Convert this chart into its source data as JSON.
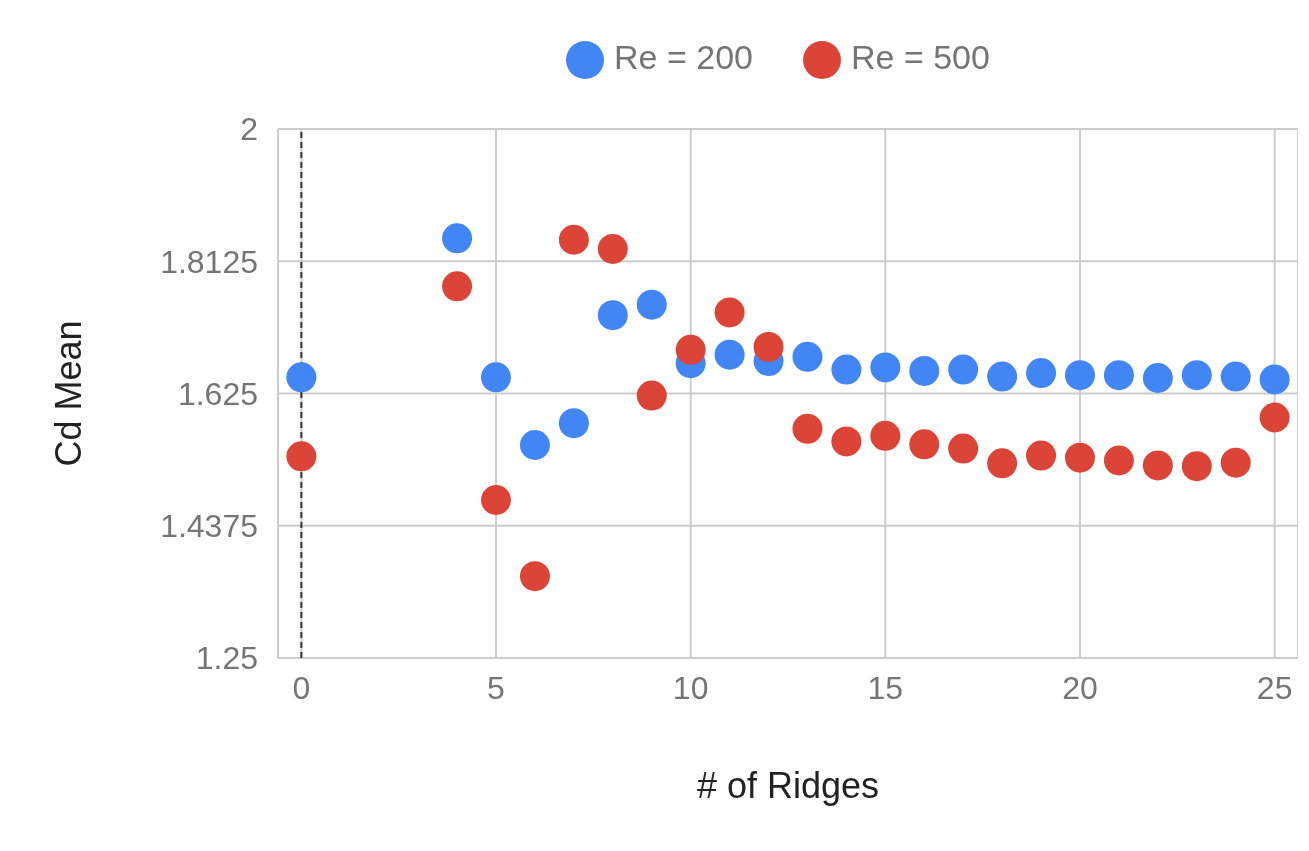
{
  "chart_data": {
    "type": "scatter",
    "xlabel": "# of Ridges",
    "ylabel": "Cd Mean",
    "series": [
      {
        "name": "Re = 200",
        "color": "#4285f4",
        "x": [
          0,
          4,
          5,
          6,
          7,
          8,
          9,
          10,
          11,
          12,
          13,
          14,
          15,
          16,
          17,
          18,
          19,
          20,
          21,
          22,
          23,
          24,
          25
        ],
        "values": [
          1.648,
          1.845,
          1.648,
          1.552,
          1.583,
          1.736,
          1.751,
          1.668,
          1.68,
          1.671,
          1.677,
          1.659,
          1.662,
          1.657,
          1.659,
          1.649,
          1.654,
          1.651,
          1.651,
          1.647,
          1.651,
          1.649,
          1.645
        ]
      },
      {
        "name": "Re = 500",
        "color": "#db4437",
        "x": [
          0,
          4,
          5,
          6,
          7,
          8,
          9,
          10,
          11,
          12,
          13,
          14,
          15,
          16,
          17,
          18,
          19,
          20,
          21,
          22,
          23,
          24,
          25
        ],
        "values": [
          1.536,
          1.777,
          1.474,
          1.366,
          1.843,
          1.83,
          1.622,
          1.687,
          1.74,
          1.691,
          1.575,
          1.557,
          1.565,
          1.553,
          1.547,
          1.526,
          1.537,
          1.534,
          1.53,
          1.523,
          1.522,
          1.527,
          1.591
        ]
      }
    ],
    "xlim": [
      -0.6,
      25.6
    ],
    "xticks": [
      0,
      5,
      10,
      15,
      20,
      25
    ],
    "ylim": [
      1.25,
      2
    ],
    "yticks": [
      1.25,
      1.4375,
      1.625,
      1.8125,
      2
    ],
    "ref_lines": [
      {
        "axis": "x",
        "value": 0,
        "color": "#333333",
        "line_style": "dashed"
      }
    ],
    "grid": true,
    "legend": "top",
    "marker": "circle"
  }
}
